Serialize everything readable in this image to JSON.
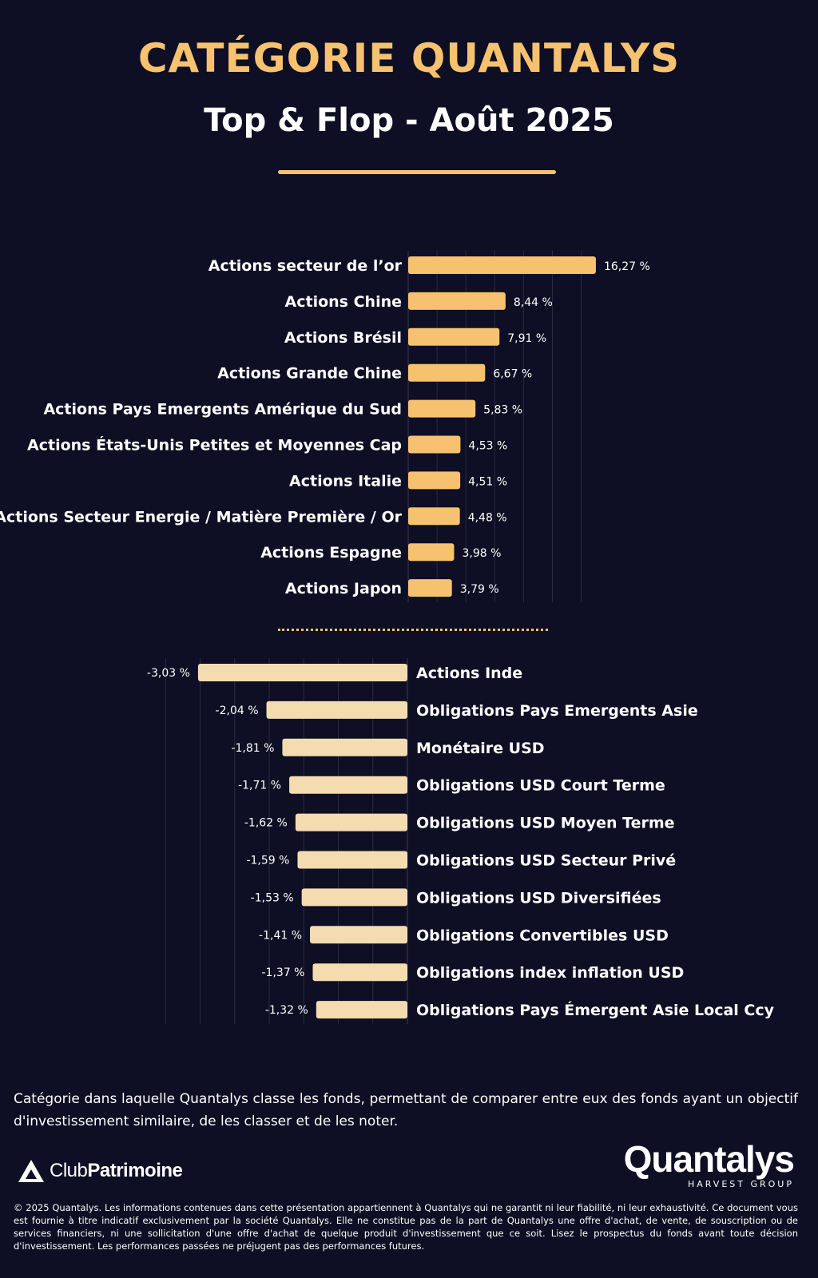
{
  "header": {
    "title": "CATÉGORIE QUANTALYS",
    "subtitle": "Top & Flop - Août 2025"
  },
  "colors": {
    "background": "#0e0e24",
    "accent": "#f6c26f",
    "top_bar": "#f6c26f",
    "flop_bar": "#f4dcb0",
    "text": "#ffffff"
  },
  "chart_data": [
    {
      "type": "bar",
      "orientation": "horizontal",
      "categories": [
        "Actions secteur de l’or",
        "Actions Chine",
        "Actions Brésil",
        "Actions Grande Chine",
        "Actions Pays Emergents Amérique du Sud",
        "Actions États-Unis Petites et Moyennes Cap",
        "Actions Italie",
        "Actions Secteur Energie / Matière Première / Or",
        "Actions Espagne",
        "Actions Japon"
      ],
      "values": [
        16.27,
        8.44,
        7.91,
        6.67,
        5.83,
        4.53,
        4.51,
        4.48,
        3.98,
        3.79
      ],
      "value_labels": [
        "16,27 %",
        "8,44 %",
        "7,91 %",
        "6,67 %",
        "5,83 %",
        "4,53 %",
        "4,51 %",
        "4,48 %",
        "3,98 %",
        "3,79 %"
      ],
      "xlim": [
        0,
        20
      ],
      "grid": true
    },
    {
      "type": "bar",
      "orientation": "horizontal",
      "categories": [
        "Actions Inde",
        "Obligations Pays Emergents Asie",
        "Monétaire USD",
        "Obligations USD Court Terme",
        "Obligations USD Moyen Terme",
        "Obligations USD Secteur Privé",
        "Obligations USD Diversifiées",
        "Obligations Convertibles USD",
        "Obligations index inflation USD",
        "Obligations Pays Émergent Asie Local Ccy"
      ],
      "values": [
        -3.03,
        -2.04,
        -1.81,
        -1.71,
        -1.62,
        -1.59,
        -1.53,
        -1.41,
        -1.37,
        -1.32
      ],
      "value_labels": [
        "-3,03 %",
        "-2,04 %",
        "-1,81 %",
        "-1,71 %",
        "-1,62 %",
        "-1,59 %",
        "-1,53 %",
        "-1,41 %",
        "-1,37 %",
        "-1,32 %"
      ],
      "xlim": [
        -3.5,
        0
      ],
      "grid": true
    }
  ],
  "footnote": "Catégorie dans laquelle Quantalys classe les fonds, permettant de comparer entre eux des fonds ayant un objectif d'investissement similaire, de les classer et de les noter.",
  "logos": {
    "left_light": "Club",
    "left_bold": "Patrimoine",
    "right": "Quantalys",
    "right_tagline": "HARVEST GROUP",
    "left_icon": "clubpatrimoine-logo-icon"
  },
  "legal": "© 2025 Quantalys. Les informations contenues dans cette présentation appartiennent à Quantalys qui ne garantit ni leur fiabilité, ni leur exhaustivité. Ce document vous est fournie à titre indicatif exclusivement par la société Quantalys. Elle ne constitue pas de la part de Quantalys une offre d'achat, de vente, de souscription ou de services financiers, ni une sollicitation d'une offre d'achat de quelque produit d'investissement que ce soit. Lisez le prospectus du fonds avant toute décision d'investissement. Les performances passées ne préjugent pas des performances futures."
}
